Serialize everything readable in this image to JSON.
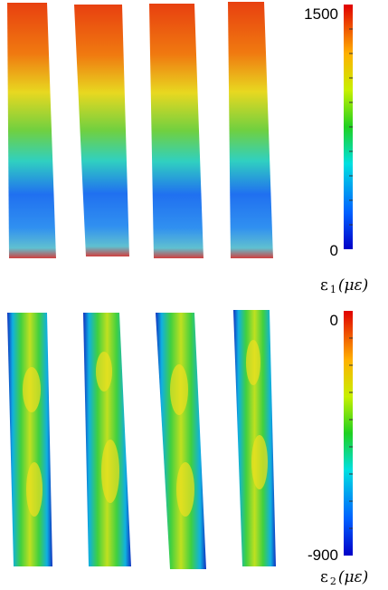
{
  "panels": [
    {
      "colorbar": {
        "max": 1500,
        "min": 0,
        "label": {
          "symbol": "ε",
          "subscript": "1",
          "unit": "(με)"
        }
      }
    },
    {
      "colorbar": {
        "max": 0,
        "min": -900,
        "label": {
          "symbol": "ε",
          "subscript": "2",
          "unit": "(με)"
        }
      }
    }
  ]
}
